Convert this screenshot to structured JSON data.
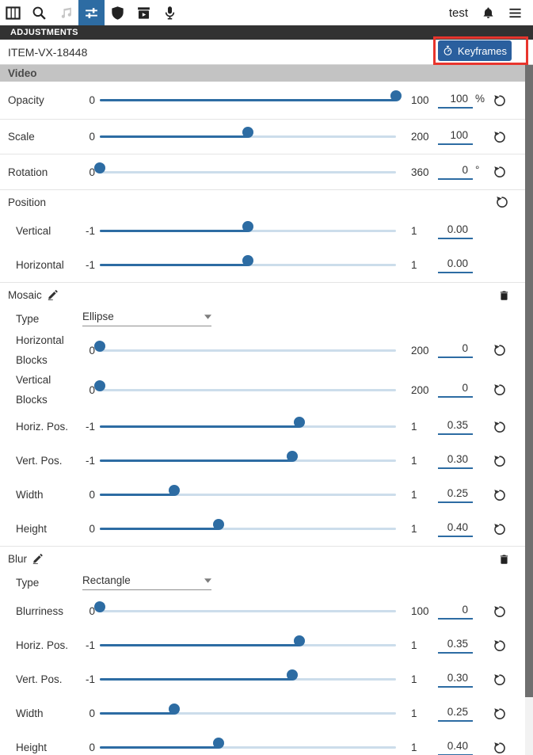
{
  "colors": {
    "accent_blue": "#2d6ca3",
    "button_blue": "#2a5f9e",
    "annotation_red": "#e8352d",
    "panel_bar_dark": "#323232",
    "section_bar_gray": "#c3c3c3",
    "slider_track_light": "#ccddeb"
  },
  "toolbar": {
    "username": "test",
    "tabs": [
      {
        "id": "media",
        "icon": "columns-icon",
        "active": false,
        "disabled": false
      },
      {
        "id": "search",
        "icon": "search-icon",
        "active": false,
        "disabled": false
      },
      {
        "id": "music",
        "icon": "music-notes-icon",
        "active": false,
        "disabled": true
      },
      {
        "id": "adjustments",
        "icon": "sliders-icon",
        "active": true,
        "disabled": false
      },
      {
        "id": "shield",
        "icon": "shield-icon",
        "active": false,
        "disabled": false
      },
      {
        "id": "export",
        "icon": "package-play-icon",
        "active": false,
        "disabled": false
      },
      {
        "id": "voice",
        "icon": "microphone-icon",
        "active": false,
        "disabled": false
      }
    ],
    "right_icons": [
      "bell-icon",
      "menu-icon"
    ]
  },
  "panel": {
    "title": "ADJUSTMENTS",
    "item_id": "ITEM-VX-18448",
    "keyframes": {
      "label": "Keyframes",
      "icon": "stopwatch-icon",
      "highlighted": true
    }
  },
  "sections": [
    {
      "title": "Video",
      "header_style": "bar",
      "row_separators": true,
      "rows": [
        {
          "label": "Opacity",
          "min": "0",
          "max": "100",
          "value": "100",
          "suffix": "%",
          "reset": true
        },
        {
          "label": "Scale",
          "min": "0",
          "max": "200",
          "value": "100",
          "suffix": "",
          "reset": true
        },
        {
          "label": "Rotation",
          "min": "0",
          "max": "360",
          "value": "0",
          "suffix": "°",
          "reset": true
        }
      ]
    },
    {
      "title": "Position",
      "header_style": "plain",
      "header_reset": true,
      "row_separators": false,
      "rows": [
        {
          "label": "Vertical",
          "min": "-1",
          "max": "1",
          "value": "0.00",
          "suffix": "",
          "reset": false
        },
        {
          "label": "Horizontal",
          "min": "-1",
          "max": "1",
          "value": "0.00",
          "suffix": "",
          "reset": false
        }
      ]
    },
    {
      "title": "Mosaic",
      "header_style": "editable",
      "editable": true,
      "removable": true,
      "type_label": "Type",
      "type_value": "Ellipse",
      "row_separators": false,
      "rows": [
        {
          "label": "Horizontal Blocks",
          "min": "0",
          "max": "200",
          "value": "0",
          "suffix": "",
          "reset": true
        },
        {
          "label": "Vertical Blocks",
          "min": "0",
          "max": "200",
          "value": "0",
          "suffix": "",
          "reset": true
        },
        {
          "label": "Horiz. Pos.",
          "min": "-1",
          "max": "1",
          "value": "0.35",
          "suffix": "",
          "reset": true
        },
        {
          "label": "Vert. Pos.",
          "min": "-1",
          "max": "1",
          "value": "0.30",
          "suffix": "",
          "reset": true
        },
        {
          "label": "Width",
          "min": "0",
          "max": "1",
          "value": "0.25",
          "suffix": "",
          "reset": true
        },
        {
          "label": "Height",
          "min": "0",
          "max": "1",
          "value": "0.40",
          "suffix": "",
          "reset": true
        }
      ]
    },
    {
      "title": "Blur",
      "header_style": "editable",
      "editable": true,
      "removable": true,
      "type_label": "Type",
      "type_value": "Rectangle",
      "row_separators": false,
      "rows": [
        {
          "label": "Blurriness",
          "min": "0",
          "max": "100",
          "value": "0",
          "suffix": "",
          "reset": true
        },
        {
          "label": "Horiz. Pos.",
          "min": "-1",
          "max": "1",
          "value": "0.35",
          "suffix": "",
          "reset": true
        },
        {
          "label": "Vert. Pos.",
          "min": "-1",
          "max": "1",
          "value": "0.30",
          "suffix": "",
          "reset": true
        },
        {
          "label": "Width",
          "min": "0",
          "max": "1",
          "value": "0.25",
          "suffix": "",
          "reset": true
        },
        {
          "label": "Height",
          "min": "0",
          "max": "1",
          "value": "0.40",
          "suffix": "",
          "reset": true
        }
      ]
    }
  ]
}
